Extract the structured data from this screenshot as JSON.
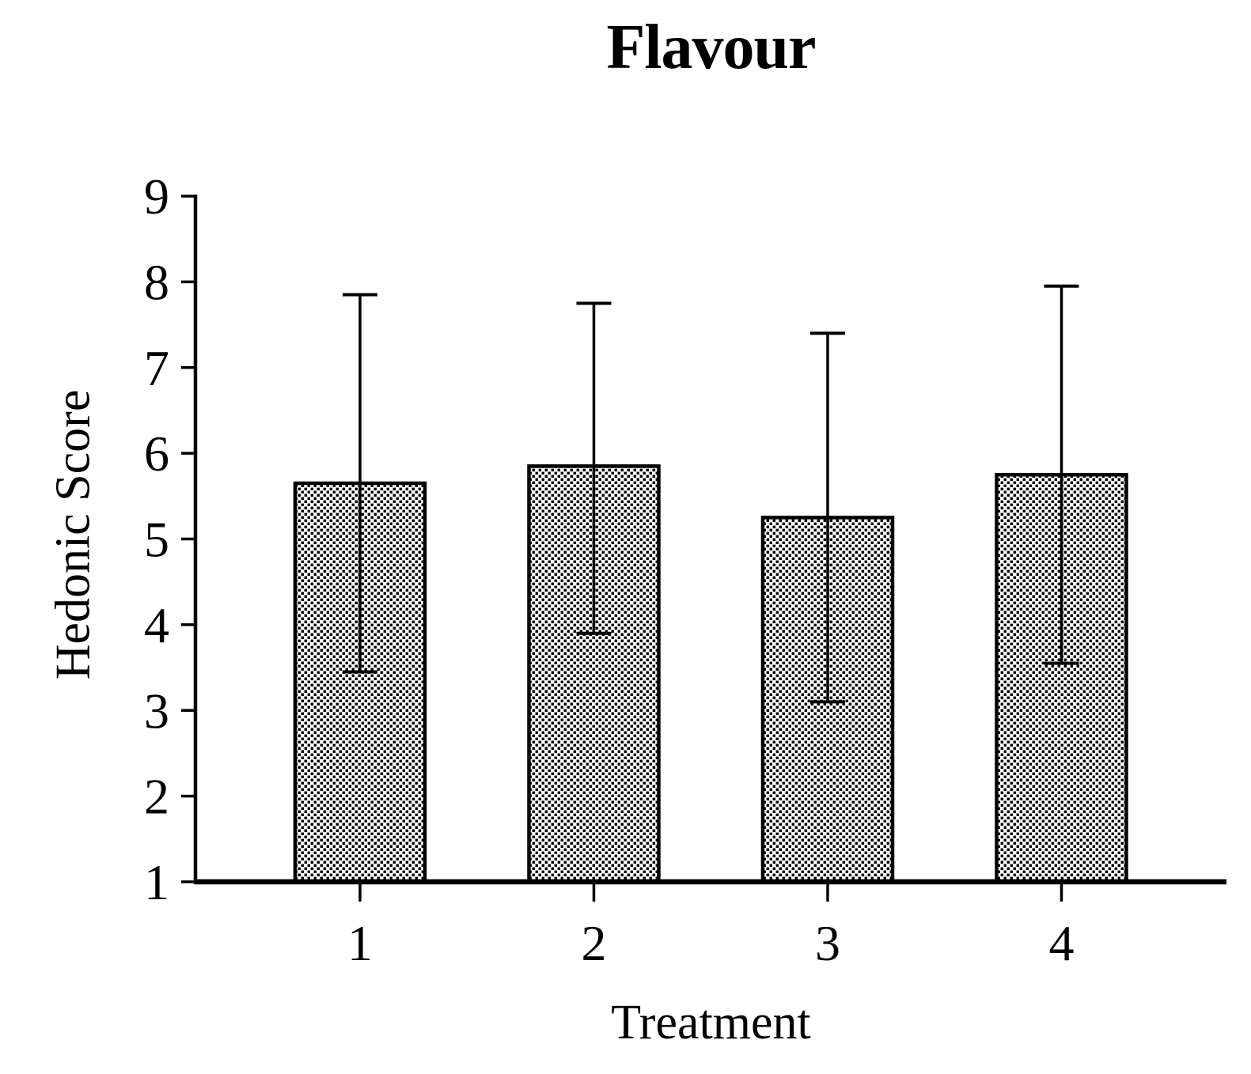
{
  "figure": {
    "background": "#ffffff",
    "foreground": "#000000"
  },
  "chart_data": {
    "type": "bar",
    "title": "Flavour",
    "xlabel": "Treatment",
    "ylabel": "Hedonic Score",
    "categories": [
      "1",
      "2",
      "3",
      "4"
    ],
    "values": [
      5.65,
      5.85,
      5.25,
      5.75
    ],
    "error_bars": {
      "upper_extent": [
        7.85,
        7.75,
        7.4,
        7.95
      ],
      "lower_extent": [
        3.45,
        3.9,
        3.1,
        3.55
      ]
    },
    "ylim": [
      1,
      9
    ],
    "yticks": [
      9,
      8,
      7,
      6,
      5,
      4,
      3,
      2,
      1
    ],
    "grid": false,
    "legend": null,
    "bar_fill": "white with black checkered dot pattern",
    "bar_border_color": "#000000"
  }
}
